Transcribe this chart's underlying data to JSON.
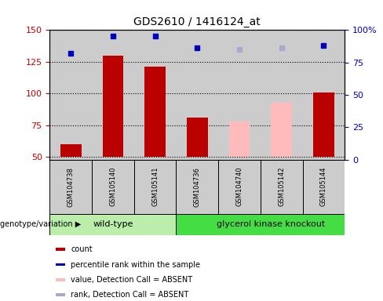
{
  "title": "GDS2610 / 1416124_at",
  "samples": [
    "GSM104738",
    "GSM105140",
    "GSM105141",
    "GSM104736",
    "GSM104740",
    "GSM105142",
    "GSM105144"
  ],
  "groups": [
    "wild-type",
    "wild-type",
    "wild-type",
    "glycerol kinase knockout",
    "glycerol kinase knockout",
    "glycerol kinase knockout",
    "glycerol kinase knockout"
  ],
  "count_values": [
    60,
    130,
    121,
    81,
    null,
    null,
    101
  ],
  "count_absent_values": [
    null,
    null,
    null,
    null,
    78,
    93,
    null
  ],
  "rank_values": [
    82,
    95,
    95,
    86,
    null,
    null,
    88
  ],
  "rank_absent_values": [
    null,
    null,
    null,
    null,
    85,
    86,
    null
  ],
  "ylim_left": [
    48,
    150
  ],
  "ylim_right": [
    0,
    100
  ],
  "yticks_left": [
    50,
    75,
    100,
    125,
    150
  ],
  "yticks_right": [
    0,
    25,
    50,
    75,
    100
  ],
  "ytick_labels_right": [
    "0",
    "25",
    "50",
    "75",
    "100%"
  ],
  "bar_width": 0.5,
  "count_color": "#bb0000",
  "count_absent_color": "#ffbbbb",
  "rank_color": "#0000bb",
  "rank_absent_color": "#aaaacc",
  "wildtype_color": "#bbeeaa",
  "knockout_color": "#44dd44",
  "grid_color": "black",
  "axis_label_color_left": "#cc0000",
  "axis_label_color_right": "#0000cc",
  "legend_items": [
    {
      "label": "count",
      "color": "#bb0000"
    },
    {
      "label": "percentile rank within the sample",
      "color": "#0000bb"
    },
    {
      "label": "value, Detection Call = ABSENT",
      "color": "#ffbbbb"
    },
    {
      "label": "rank, Detection Call = ABSENT",
      "color": "#aaaacc"
    }
  ],
  "genotype_label": "genotype/variation",
  "base_value": 50,
  "sample_bg_color": "#cccccc",
  "plot_bg_color": "#ffffff",
  "rank_marker_size": 5
}
